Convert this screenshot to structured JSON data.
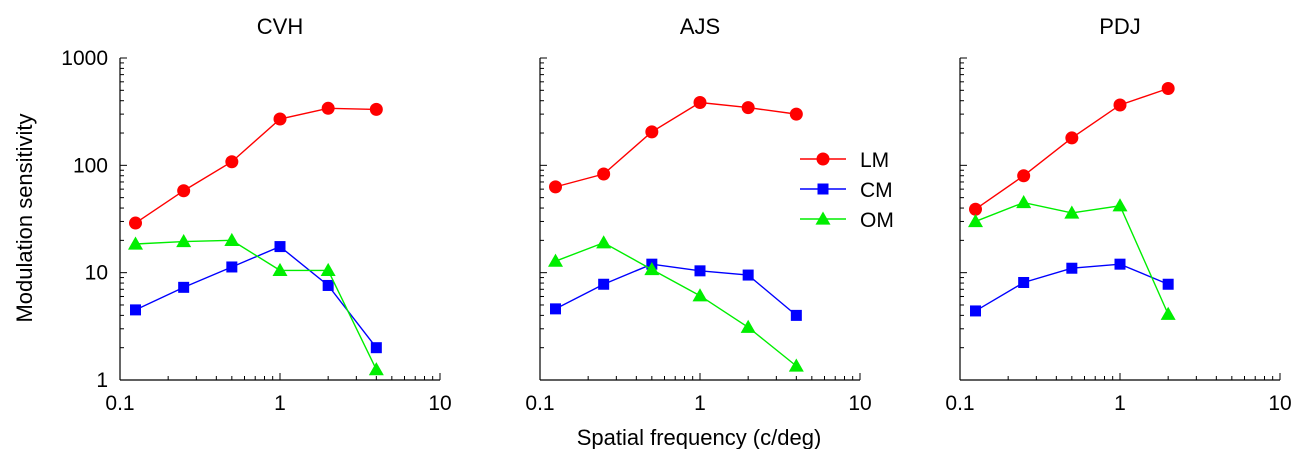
{
  "figure": {
    "ylabel": "Modulation sensitivity",
    "xlabel": "Spatial frequency (c/deg)"
  },
  "legend": {
    "placement": "inside-middle-panel-top-right",
    "entries": [
      {
        "name": "LM",
        "color": "#ff0000",
        "marker": "circle"
      },
      {
        "name": "CM",
        "color": "#0000ff",
        "marker": "square"
      },
      {
        "name": "OM",
        "color": "#00ee00",
        "marker": "triangle"
      }
    ]
  },
  "chart_data": [
    {
      "type": "line",
      "title": "CVH",
      "xscale": "log",
      "yscale": "log",
      "xlim": [
        0.1,
        10
      ],
      "ylim": [
        1,
        1000
      ],
      "xticks": [
        "0.1",
        "1",
        "10"
      ],
      "yticks": [
        "1",
        "10",
        "100",
        "1000"
      ],
      "series": [
        {
          "name": "LM",
          "color": "#ff0000",
          "marker": "circle",
          "x": [
            0.125,
            0.25,
            0.5,
            1,
            2,
            4
          ],
          "y": [
            29,
            58,
            108,
            270,
            340,
            332
          ]
        },
        {
          "name": "CM",
          "color": "#0000ff",
          "marker": "square",
          "x": [
            0.125,
            0.25,
            0.5,
            1,
            2,
            4
          ],
          "y": [
            4.5,
            7.3,
            11.3,
            17.5,
            7.6,
            2.0
          ]
        },
        {
          "name": "OM",
          "color": "#00ee00",
          "marker": "triangle",
          "x": [
            0.125,
            0.25,
            0.5,
            1,
            2,
            4
          ],
          "y": [
            18.5,
            19.5,
            20,
            10.5,
            10.5,
            1.25
          ]
        }
      ]
    },
    {
      "type": "line",
      "title": "AJS",
      "xscale": "log",
      "yscale": "log",
      "xlim": [
        0.1,
        10
      ],
      "ylim": [
        1,
        1000
      ],
      "xticks": [
        "0.1",
        "1",
        "10"
      ],
      "yticks": [],
      "series": [
        {
          "name": "LM",
          "color": "#ff0000",
          "marker": "circle",
          "x": [
            0.125,
            0.25,
            0.5,
            1,
            2,
            4
          ],
          "y": [
            63,
            83,
            205,
            385,
            345,
            300
          ]
        },
        {
          "name": "CM",
          "color": "#0000ff",
          "marker": "square",
          "x": [
            0.125,
            0.25,
            0.5,
            1,
            2,
            4
          ],
          "y": [
            4.6,
            7.8,
            12,
            10.4,
            9.5,
            4.0
          ]
        },
        {
          "name": "OM",
          "color": "#00ee00",
          "marker": "triangle",
          "x": [
            0.125,
            0.25,
            0.5,
            1,
            2,
            4
          ],
          "y": [
            12.8,
            19,
            10.7,
            6.1,
            3.1,
            1.35
          ]
        }
      ]
    },
    {
      "type": "line",
      "title": "PDJ",
      "xscale": "log",
      "yscale": "log",
      "xlim": [
        0.1,
        10
      ],
      "ylim": [
        1,
        1000
      ],
      "xticks": [
        "0.1",
        "1",
        "10"
      ],
      "yticks": [],
      "series": [
        {
          "name": "LM",
          "color": "#ff0000",
          "marker": "circle",
          "x": [
            0.125,
            0.25,
            0.5,
            1,
            2
          ],
          "y": [
            39,
            80,
            180,
            365,
            520
          ]
        },
        {
          "name": "CM",
          "color": "#0000ff",
          "marker": "square",
          "x": [
            0.125,
            0.25,
            0.5,
            1,
            2
          ],
          "y": [
            4.4,
            8.1,
            11,
            12,
            7.8
          ]
        },
        {
          "name": "OM",
          "color": "#00ee00",
          "marker": "triangle",
          "x": [
            0.125,
            0.25,
            0.5,
            1,
            2
          ],
          "y": [
            30,
            45,
            36,
            42,
            4.1
          ]
        }
      ]
    }
  ]
}
